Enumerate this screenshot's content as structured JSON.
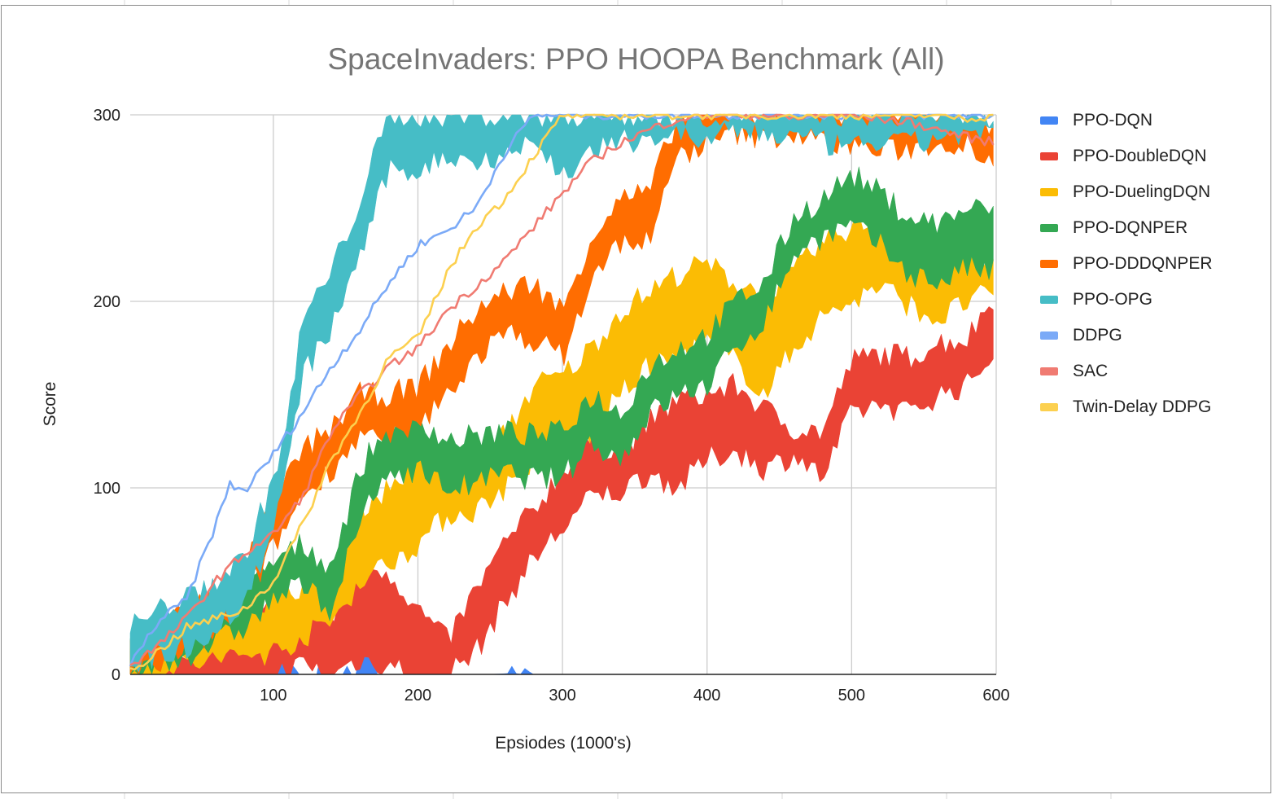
{
  "chart_data": {
    "type": "area",
    "title": "SpaceInvaders: PPO HOOPA Benchmark (All)",
    "xlabel": "Epsiodes (1000's)",
    "ylabel": "Score",
    "xlim": [
      1,
      600
    ],
    "ylim": [
      0,
      300
    ],
    "x_ticks": [
      100,
      200,
      300,
      400,
      500,
      600
    ],
    "y_ticks": [
      0,
      100,
      200,
      300
    ],
    "grid": true,
    "legend_position": "right",
    "series": [
      {
        "name": "PPO-DQN",
        "color": "#4285f4",
        "x": [
          1,
          50,
          90,
          100,
          110,
          120,
          130,
          135,
          140,
          150,
          160,
          165,
          170,
          180,
          250,
          275,
          280,
          600
        ],
        "upper": [
          0,
          0,
          0,
          8,
          4,
          0,
          0,
          7,
          0,
          0,
          8,
          16,
          0,
          0,
          0,
          1,
          0,
          0
        ],
        "lower": [
          0,
          0,
          0,
          0,
          0,
          0,
          0,
          0,
          0,
          0,
          0,
          0,
          0,
          0,
          0,
          0,
          0,
          0
        ]
      },
      {
        "name": "PPO-DoubleDQN",
        "color": "#ea4335",
        "x": [
          1,
          20,
          40,
          60,
          80,
          100,
          120,
          140,
          160,
          180,
          200,
          220,
          240,
          260,
          280,
          300,
          320,
          340,
          360,
          380,
          400,
          420,
          440,
          460,
          480,
          500,
          520,
          540,
          560,
          580,
          600
        ],
        "upper": [
          10,
          12,
          15,
          16,
          22,
          38,
          35,
          28,
          60,
          55,
          35,
          18,
          45,
          70,
          88,
          110,
          125,
          120,
          135,
          148,
          150,
          155,
          142,
          132,
          130,
          168,
          172,
          170,
          178,
          180,
          205
        ],
        "lower": [
          0,
          0,
          0,
          0,
          0,
          0,
          5,
          0,
          8,
          5,
          0,
          0,
          12,
          38,
          62,
          78,
          95,
          98,
          108,
          100,
          115,
          120,
          110,
          118,
          105,
          140,
          145,
          140,
          150,
          155,
          175
        ]
      },
      {
        "name": "PPO-DuelingDQN",
        "color": "#fbbc04",
        "x": [
          1,
          20,
          40,
          60,
          80,
          100,
          120,
          140,
          160,
          180,
          200,
          220,
          240,
          260,
          280,
          300,
          320,
          340,
          360,
          380,
          400,
          420,
          440,
          460,
          480,
          500,
          520,
          540,
          560,
          580,
          600
        ],
        "upper": [
          12,
          16,
          22,
          34,
          35,
          40,
          48,
          55,
          90,
          100,
          115,
          120,
          118,
          128,
          155,
          160,
          175,
          195,
          205,
          215,
          220,
          210,
          205,
          215,
          232,
          240,
          245,
          232,
          228,
          225,
          225
        ],
        "lower": [
          0,
          0,
          5,
          8,
          10,
          12,
          20,
          28,
          50,
          60,
          70,
          85,
          88,
          100,
          115,
          118,
          130,
          150,
          165,
          170,
          178,
          168,
          150,
          175,
          192,
          200,
          208,
          198,
          190,
          200,
          205
        ]
      },
      {
        "name": "PPO-DQNPER",
        "color": "#34a853",
        "x": [
          1,
          20,
          40,
          60,
          80,
          100,
          120,
          140,
          160,
          180,
          200,
          220,
          240,
          260,
          280,
          300,
          320,
          340,
          360,
          380,
          400,
          420,
          440,
          460,
          480,
          500,
          520,
          540,
          560,
          580,
          600
        ],
        "upper": [
          15,
          20,
          28,
          35,
          45,
          60,
          70,
          58,
          110,
          135,
          138,
          125,
          128,
          130,
          128,
          130,
          150,
          140,
          165,
          175,
          182,
          200,
          210,
          245,
          255,
          268,
          258,
          245,
          242,
          250,
          248
        ],
        "lower": [
          0,
          5,
          10,
          18,
          25,
          40,
          48,
          35,
          82,
          108,
          110,
          100,
          102,
          108,
          105,
          105,
          125,
          115,
          140,
          150,
          155,
          175,
          190,
          225,
          235,
          240,
          230,
          215,
          210,
          218,
          215
        ]
      },
      {
        "name": "PPO-DDDQNPER",
        "color": "#ff6d01",
        "x": [
          1,
          20,
          40,
          60,
          80,
          100,
          120,
          140,
          160,
          180,
          200,
          220,
          240,
          260,
          280,
          300,
          320,
          340,
          360,
          380,
          400,
          420,
          440,
          460,
          480,
          500,
          520,
          540,
          560,
          580,
          600
        ],
        "upper": [
          20,
          28,
          35,
          42,
          58,
          90,
          120,
          132,
          150,
          150,
          155,
          175,
          195,
          205,
          210,
          195,
          235,
          255,
          258,
          300,
          300,
          300,
          300,
          300,
          300,
          300,
          300,
          300,
          300,
          300,
          295
        ],
        "lower": [
          0,
          5,
          15,
          22,
          40,
          68,
          95,
          110,
          128,
          125,
          132,
          150,
          170,
          182,
          180,
          170,
          210,
          232,
          232,
          278,
          285,
          290,
          288,
          290,
          285,
          285,
          280,
          282,
          285,
          285,
          275
        ]
      },
      {
        "name": "PPO-OPG",
        "color": "#46bdc6",
        "x": [
          1,
          20,
          40,
          60,
          80,
          100,
          110,
          120,
          140,
          160,
          180,
          200,
          220,
          240,
          260,
          280,
          300,
          320,
          340,
          360,
          380,
          400,
          420,
          440,
          460,
          480,
          500,
          520,
          540,
          560,
          580,
          600
        ],
        "upper": [
          25,
          35,
          40,
          50,
          62,
          105,
          135,
          190,
          215,
          255,
          300,
          300,
          300,
          300,
          300,
          300,
          300,
          300,
          300,
          300,
          300,
          300,
          300,
          300,
          300,
          300,
          300,
          300,
          300,
          300,
          300,
          300
        ],
        "lower": [
          5,
          10,
          15,
          25,
          38,
          78,
          110,
          160,
          185,
          225,
          270,
          270,
          278,
          275,
          280,
          285,
          268,
          280,
          285,
          288,
          290,
          285,
          292,
          290,
          288,
          285,
          282,
          286,
          284,
          288,
          290,
          288
        ]
      },
      {
        "name": "DDPG",
        "color": "#7baaf7",
        "x": [
          1,
          20,
          40,
          60,
          70,
          80,
          100,
          120,
          140,
          160,
          180,
          200,
          220,
          240,
          260,
          280,
          300,
          600
        ],
        "values": [
          5,
          28,
          40,
          80,
          102,
          98,
          118,
          140,
          165,
          185,
          210,
          230,
          238,
          250,
          280,
          300,
          300,
          300
        ]
      },
      {
        "name": "SAC",
        "color": "#f07b72",
        "x": [
          1,
          20,
          40,
          60,
          80,
          100,
          120,
          140,
          160,
          180,
          200,
          220,
          240,
          260,
          280,
          300,
          320,
          340,
          360,
          380,
          400,
          420,
          440,
          460,
          480,
          500,
          520,
          540,
          560,
          580,
          600
        ],
        "values": [
          5,
          15,
          30,
          50,
          65,
          75,
          95,
          130,
          150,
          165,
          175,
          195,
          208,
          222,
          240,
          258,
          275,
          285,
          292,
          298,
          300,
          300,
          300,
          298,
          300,
          300,
          298,
          296,
          292,
          288,
          285
        ]
      },
      {
        "name": "Twin-Delay DDPG",
        "color": "#fcd04f",
        "x": [
          1,
          20,
          40,
          60,
          80,
          100,
          120,
          140,
          160,
          180,
          200,
          220,
          240,
          260,
          280,
          300,
          320,
          340,
          360,
          380,
          400,
          420,
          440,
          460,
          480,
          500,
          520,
          540,
          560,
          580,
          600
        ],
        "values": [
          2,
          12,
          25,
          30,
          35,
          50,
          80,
          115,
          140,
          170,
          180,
          215,
          240,
          255,
          278,
          300,
          300,
          300,
          300,
          300,
          300,
          300,
          300,
          300,
          300,
          300,
          300,
          300,
          300,
          298,
          300
        ]
      }
    ]
  }
}
